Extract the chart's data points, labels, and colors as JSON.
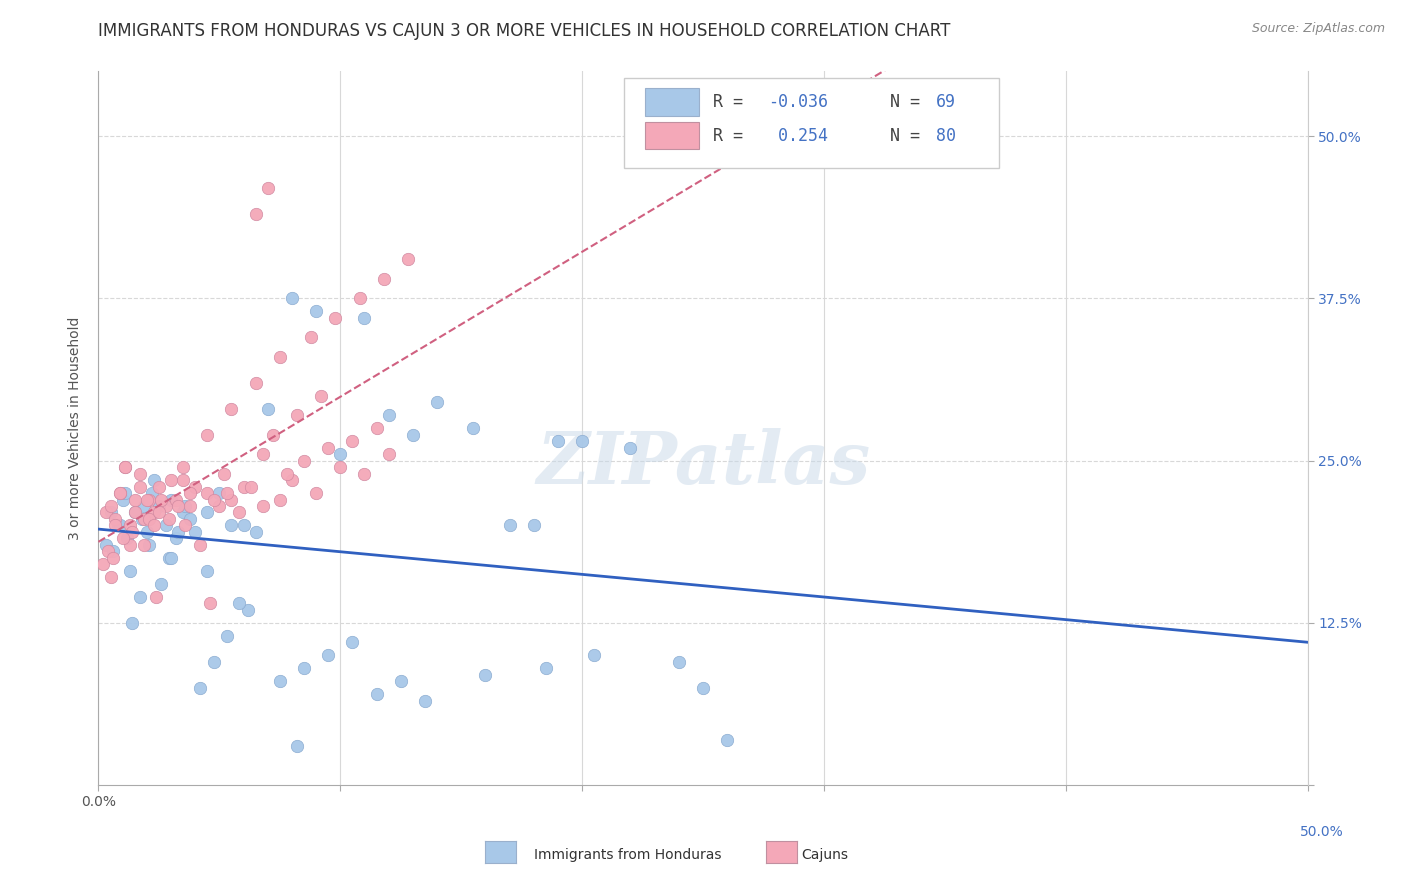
{
  "title": "IMMIGRANTS FROM HONDURAS VS CAJUN 3 OR MORE VEHICLES IN HOUSEHOLD CORRELATION CHART",
  "source_text": "Source: ZipAtlas.com",
  "ylabel": "3 or more Vehicles in Household",
  "xlim": [
    0.0,
    50.0
  ],
  "ylim": [
    0.0,
    55.0
  ],
  "x_ticks": [
    0.0,
    10.0,
    20.0,
    30.0,
    40.0,
    50.0
  ],
  "y_ticks": [
    0.0,
    12.5,
    25.0,
    37.5,
    50.0
  ],
  "y_tick_labels": [
    "",
    "12.5%",
    "25.0%",
    "37.5%",
    "50.0%"
  ],
  "background_color": "#ffffff",
  "grid_color": "#d8d8d8",
  "blue_color": "#a8c8e8",
  "pink_color": "#f4a8b8",
  "blue_line_color": "#3060c0",
  "pink_line_color": "#d06080",
  "text_blue": "#4472c4",
  "R_blue": -0.036,
  "N_blue": 69,
  "R_pink": 0.254,
  "N_pink": 80,
  "legend_label_blue": "Immigrants from Honduras",
  "legend_label_pink": "Cajuns",
  "watermark": "ZIPatlas",
  "blue_scatter_x": [
    0.5,
    0.8,
    1.0,
    1.2,
    1.5,
    1.8,
    2.0,
    2.2,
    2.5,
    2.8,
    3.0,
    3.2,
    3.5,
    3.8,
    4.0,
    4.5,
    5.0,
    5.5,
    6.0,
    6.5,
    7.0,
    8.0,
    9.0,
    10.0,
    11.0,
    12.0,
    13.0,
    14.0,
    15.5,
    17.0,
    18.0,
    19.0,
    20.0,
    22.0,
    24.0,
    0.3,
    0.6,
    0.9,
    1.1,
    1.4,
    1.7,
    1.9,
    2.3,
    2.6,
    2.9,
    3.3,
    3.6,
    4.2,
    4.8,
    5.3,
    6.2,
    7.5,
    8.5,
    9.5,
    10.5,
    11.5,
    12.5,
    13.5,
    16.0,
    18.5,
    20.5,
    25.0,
    1.3,
    2.1,
    3.0,
    4.5,
    5.8,
    8.2,
    26.0
  ],
  "blue_scatter_y": [
    21.0,
    20.0,
    22.0,
    19.0,
    21.0,
    20.5,
    19.5,
    22.5,
    21.5,
    20.0,
    22.0,
    19.0,
    21.0,
    20.5,
    19.5,
    21.0,
    22.5,
    20.0,
    20.0,
    19.5,
    29.0,
    37.5,
    36.5,
    25.5,
    36.0,
    28.5,
    27.0,
    29.5,
    27.5,
    20.0,
    20.0,
    26.5,
    26.5,
    26.0,
    9.5,
    18.5,
    18.0,
    20.0,
    22.5,
    12.5,
    14.5,
    21.5,
    23.5,
    15.5,
    17.5,
    19.5,
    21.5,
    7.5,
    9.5,
    11.5,
    13.5,
    8.0,
    9.0,
    10.0,
    11.0,
    7.0,
    8.0,
    6.5,
    8.5,
    9.0,
    10.0,
    7.5,
    16.5,
    18.5,
    17.5,
    16.5,
    14.0,
    3.0,
    3.5
  ],
  "pink_scatter_x": [
    0.3,
    0.5,
    0.7,
    0.9,
    1.1,
    1.3,
    1.5,
    1.7,
    1.9,
    2.1,
    2.3,
    2.5,
    2.8,
    3.0,
    3.2,
    3.5,
    3.8,
    4.0,
    4.5,
    5.0,
    5.5,
    6.0,
    6.5,
    7.0,
    7.5,
    8.0,
    9.0,
    10.0,
    11.0,
    12.0,
    4.2,
    0.4,
    0.7,
    0.9,
    1.1,
    1.3,
    1.5,
    1.7,
    1.9,
    2.1,
    2.3,
    2.6,
    2.9,
    3.3,
    3.6,
    4.8,
    5.3,
    5.8,
    6.3,
    6.8,
    7.8,
    8.5,
    9.5,
    10.5,
    2.4,
    4.6,
    11.5,
    0.2,
    0.6,
    1.4,
    2.5,
    3.8,
    5.2,
    6.8,
    7.2,
    8.2,
    9.2,
    0.5,
    1.0,
    2.0,
    3.5,
    4.5,
    5.5,
    6.5,
    7.5,
    8.8,
    9.8,
    10.8,
    11.8,
    12.8
  ],
  "pink_scatter_y": [
    21.0,
    21.5,
    20.5,
    22.5,
    24.5,
    20.0,
    22.0,
    24.0,
    20.5,
    22.0,
    21.0,
    23.0,
    21.5,
    23.5,
    22.0,
    23.5,
    21.5,
    23.0,
    22.5,
    21.5,
    22.0,
    23.0,
    44.0,
    46.0,
    22.0,
    23.5,
    22.5,
    24.5,
    24.0,
    25.5,
    18.5,
    18.0,
    20.0,
    22.5,
    24.5,
    18.5,
    21.0,
    23.0,
    18.5,
    20.5,
    20.0,
    22.0,
    20.5,
    21.5,
    20.0,
    22.0,
    22.5,
    21.0,
    23.0,
    21.5,
    24.0,
    25.0,
    26.0,
    26.5,
    14.5,
    14.0,
    27.5,
    17.0,
    17.5,
    19.5,
    21.0,
    22.5,
    24.0,
    25.5,
    27.0,
    28.5,
    30.0,
    16.0,
    19.0,
    22.0,
    24.5,
    27.0,
    29.0,
    31.0,
    33.0,
    34.5,
    36.0,
    37.5,
    39.0,
    40.5
  ]
}
